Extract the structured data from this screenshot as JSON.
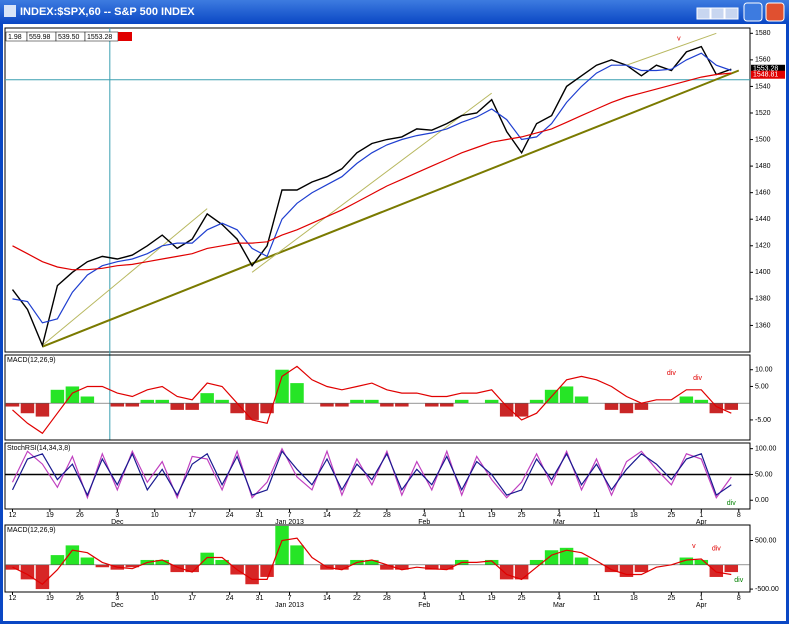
{
  "window_title": "INDEX:$SPX,60 -- S&P 500 INDEX",
  "chart_data": [
    {
      "type": "line",
      "info": [
        "1.98",
        "559.98",
        "539.50",
        "1553.28"
      ],
      "x": [
        0,
        2,
        4,
        6,
        8,
        10,
        12,
        14,
        16,
        18,
        20,
        22,
        24,
        26,
        28,
        30,
        32,
        34,
        36,
        38,
        40,
        42,
        44,
        46,
        48,
        50,
        52,
        54,
        56,
        58,
        60,
        62,
        64,
        66,
        68,
        70,
        72,
        74,
        76,
        78,
        80,
        82,
        84,
        86,
        88,
        90,
        92,
        94,
        96
      ],
      "xlim": [
        -1,
        98.5
      ],
      "ylim": [
        1340,
        1584
      ],
      "yticks": [
        1360,
        1380,
        1400,
        1420,
        1440,
        1460,
        1480,
        1500,
        1520,
        1540,
        1560,
        1580
      ],
      "series": [
        {
          "color": "#000000",
          "values": [
            1387,
            1372,
            1345,
            1390,
            1400,
            1408,
            1412,
            1410,
            1413,
            1420,
            1428,
            1418,
            1425,
            1444,
            1436,
            1425,
            1405,
            1420,
            1462,
            1462,
            1468,
            1472,
            1478,
            1490,
            1497,
            1500,
            1502,
            1508,
            1507,
            1512,
            1518,
            1520,
            1530,
            1506,
            1490,
            1512,
            1518,
            1540,
            1548,
            1556,
            1560,
            1556,
            1548,
            1556,
            1552,
            1566,
            1570,
            1549,
            1553
          ]
        },
        {
          "color": "#1f3fd0",
          "values": [
            1380,
            1378,
            1362,
            1365,
            1385,
            1398,
            1405,
            1408,
            1410,
            1414,
            1420,
            1422,
            1422,
            1432,
            1437,
            1432,
            1418,
            1412,
            1440,
            1452,
            1460,
            1466,
            1472,
            1482,
            1490,
            1496,
            1500,
            1503,
            1505,
            1508,
            1513,
            1517,
            1523,
            1515,
            1500,
            1502,
            1512,
            1528,
            1540,
            1550,
            1556,
            1556,
            1552,
            1552,
            1553,
            1560,
            1565,
            1556,
            1552
          ]
        },
        {
          "color": "#e00000",
          "values": [
            1420,
            1414,
            1408,
            1404,
            1402,
            1402,
            1403,
            1405,
            1406,
            1408,
            1410,
            1412,
            1414,
            1418,
            1420,
            1422,
            1422,
            1423,
            1428,
            1432,
            1437,
            1442,
            1447,
            1453,
            1459,
            1465,
            1470,
            1475,
            1480,
            1485,
            1490,
            1494,
            1498,
            1500,
            1502,
            1505,
            1508,
            1513,
            1518,
            1523,
            1528,
            1532,
            1535,
            1538,
            1541,
            1544,
            1547,
            1549,
            1550
          ]
        }
      ],
      "trendlines": [
        {
          "color": "#7a7a00",
          "x": [
            4,
            97
          ],
          "values": [
            1344,
            1552
          ]
        },
        {
          "color": "#b8b860",
          "x": [
            4,
            26
          ],
          "values": [
            1345,
            1448
          ]
        },
        {
          "color": "#b8b860",
          "x": [
            32,
            64
          ],
          "values": [
            1400,
            1535
          ]
        },
        {
          "color": "#b8b860",
          "x": [
            82,
            94
          ],
          "values": [
            1556,
            1580
          ]
        }
      ],
      "crosshair": {
        "color": "#3a9fb0",
        "x": 13,
        "y": 1545
      },
      "last_values": [
        {
          "value": 1553.28,
          "color": "#000000"
        },
        {
          "value": 1548.81,
          "color": "#e00000"
        }
      ],
      "annotations": [
        {
          "text": "v",
          "x": 89,
          "y": 1576,
          "color": "#e00000"
        }
      ]
    },
    {
      "type": "macd",
      "label": "MACD(12,26,9)",
      "x": [
        0,
        2,
        4,
        6,
        8,
        10,
        12,
        14,
        16,
        18,
        20,
        22,
        24,
        26,
        28,
        30,
        32,
        34,
        36,
        38,
        40,
        42,
        44,
        46,
        48,
        50,
        52,
        54,
        56,
        58,
        60,
        62,
        64,
        66,
        68,
        70,
        72,
        74,
        76,
        78,
        80,
        82,
        84,
        86,
        88,
        90,
        92,
        94,
        96
      ],
      "xlim": [
        -1,
        98.5
      ],
      "ylim": [
        -11,
        14.4
      ],
      "yticks": [
        {
          "value": 10,
          "label": "10.00"
        },
        {
          "value": 5,
          "label": "5.00"
        },
        {
          "value": -5,
          "label": "-5.00"
        }
      ],
      "histogram": {
        "pos_color": "#00e000",
        "neg_color": "#c00000",
        "values": [
          -1,
          -3,
          -4,
          4,
          5,
          2,
          0,
          -1,
          -1,
          1,
          1,
          -2,
          -2,
          3,
          1,
          -3,
          -5,
          -3,
          10,
          6,
          0,
          -1,
          -1,
          1,
          1,
          -1,
          -1,
          0,
          -1,
          -1,
          1,
          0,
          1,
          -4,
          -4,
          1,
          4,
          5,
          2,
          0,
          -2,
          -3,
          -2,
          0,
          0,
          2,
          1,
          -3,
          -2
        ]
      },
      "series": [
        {
          "color": "#e00000",
          "values": [
            -2,
            -6,
            -9,
            -3,
            3,
            5,
            5,
            3,
            2,
            4,
            5,
            2,
            1,
            6,
            5,
            0,
            -5,
            -6,
            8,
            11,
            7,
            5,
            4,
            5,
            6,
            4,
            3,
            3,
            2,
            2,
            3,
            3,
            4,
            -1,
            -5,
            -3,
            2,
            7,
            8,
            7,
            5,
            2,
            0,
            1,
            1,
            4,
            4,
            -1,
            -3
          ]
        }
      ],
      "annotations": [
        {
          "text": "div",
          "x": 88,
          "y": 9,
          "color": "#e00000"
        },
        {
          "text": "div",
          "x": 91.5,
          "y": 7.5,
          "color": "#e00000"
        }
      ]
    },
    {
      "type": "line",
      "label": "StochRSI(14,34,3,8)",
      "x": [
        0,
        2,
        4,
        6,
        8,
        10,
        12,
        14,
        16,
        18,
        20,
        22,
        24,
        26,
        28,
        30,
        32,
        34,
        36,
        38,
        40,
        42,
        44,
        46,
        48,
        50,
        52,
        54,
        56,
        58,
        60,
        62,
        64,
        66,
        68,
        70,
        72,
        74,
        76,
        78,
        80,
        82,
        84,
        86,
        88,
        90,
        92,
        94,
        96
      ],
      "xlim": [
        -1,
        98.5
      ],
      "ylim": [
        -17,
        111
      ],
      "yticks": [
        {
          "value": 100,
          "label": "100.00"
        },
        {
          "value": 50,
          "label": "50.00"
        },
        {
          "value": 0,
          "label": "0.00"
        }
      ],
      "reference_line": 50,
      "series": [
        {
          "color": "#c040c0",
          "values": [
            35,
            95,
            70,
            25,
            85,
            5,
            90,
            20,
            95,
            35,
            75,
            5,
            85,
            80,
            20,
            95,
            5,
            35,
            100,
            45,
            20,
            95,
            10,
            80,
            30,
            95,
            10,
            75,
            20,
            95,
            10,
            85,
            40,
            5,
            35,
            90,
            30,
            95,
            20,
            80,
            10,
            75,
            95,
            60,
            30,
            90,
            80,
            5,
            45
          ]
        },
        {
          "color": "#1a1a90",
          "values": [
            20,
            80,
            90,
            40,
            70,
            10,
            80,
            30,
            90,
            20,
            60,
            10,
            70,
            90,
            30,
            85,
            10,
            20,
            95,
            60,
            30,
            80,
            20,
            70,
            40,
            90,
            20,
            60,
            30,
            85,
            20,
            75,
            50,
            10,
            20,
            80,
            40,
            90,
            30,
            70,
            20,
            60,
            90,
            70,
            40,
            80,
            90,
            10,
            30
          ]
        }
      ],
      "xticks": [
        {
          "value": 0,
          "label": "12"
        },
        {
          "value": 5,
          "label": "19"
        },
        {
          "value": 9,
          "label": "26"
        },
        {
          "value": 14,
          "label": "3"
        },
        {
          "value": 19,
          "label": "10"
        },
        {
          "value": 24,
          "label": "17"
        },
        {
          "value": 29,
          "label": "24"
        },
        {
          "value": 33,
          "label": "31"
        },
        {
          "value": 37,
          "label": "7"
        },
        {
          "value": 42,
          "label": "14"
        },
        {
          "value": 46,
          "label": "22"
        },
        {
          "value": 50,
          "label": "28"
        },
        {
          "value": 55,
          "label": "4"
        },
        {
          "value": 60,
          "label": "11"
        },
        {
          "value": 64,
          "label": "19"
        },
        {
          "value": 68,
          "label": "25"
        },
        {
          "value": 73,
          "label": "4"
        },
        {
          "value": 78,
          "label": "11"
        },
        {
          "value": 83,
          "label": "18"
        },
        {
          "value": 88,
          "label": "25"
        },
        {
          "value": 92,
          "label": "1"
        },
        {
          "value": 97,
          "label": "8"
        }
      ],
      "months": [
        {
          "value": 14,
          "label": "Dec"
        },
        {
          "value": 37,
          "label": "Jan 2013"
        },
        {
          "value": 55,
          "label": "Feb"
        },
        {
          "value": 73,
          "label": "Mar"
        },
        {
          "value": 92,
          "label": "Apr"
        }
      ],
      "annotations": [
        {
          "text": "div",
          "x": 96,
          "y": -6,
          "color": "#008000"
        }
      ]
    },
    {
      "type": "macd",
      "label": "MACD(12,26,9)",
      "x": [
        0,
        2,
        4,
        6,
        8,
        10,
        12,
        14,
        16,
        18,
        20,
        22,
        24,
        26,
        28,
        30,
        32,
        34,
        36,
        38,
        40,
        42,
        44,
        46,
        48,
        50,
        52,
        54,
        56,
        58,
        60,
        62,
        64,
        66,
        68,
        70,
        72,
        74,
        76,
        78,
        80,
        82,
        84,
        86,
        88,
        90,
        92,
        94,
        96
      ],
      "xlim": [
        -1,
        98.5
      ],
      "ylim": [
        -560,
        820
      ],
      "yticks": [
        {
          "value": 500,
          "label": "500.00"
        },
        {
          "value": -500,
          "label": "-500.00"
        }
      ],
      "histogram": {
        "pos_color": "#00e000",
        "neg_color": "#d00000",
        "values": [
          -100,
          -300,
          -500,
          200,
          400,
          150,
          -50,
          -100,
          -50,
          100,
          100,
          -150,
          -150,
          250,
          100,
          -200,
          -400,
          -250,
          800,
          400,
          0,
          -100,
          -100,
          100,
          100,
          -100,
          -100,
          0,
          -100,
          -100,
          100,
          0,
          100,
          -300,
          -300,
          100,
          300,
          350,
          150,
          0,
          -150,
          -250,
          -150,
          0,
          0,
          150,
          100,
          -250,
          -150
        ]
      },
      "series": [
        {
          "color": "#e00000",
          "values": [
            -50,
            -200,
            -400,
            -100,
            300,
            250,
            50,
            -50,
            -80,
            50,
            100,
            -50,
            -150,
            150,
            150,
            -100,
            -300,
            -300,
            500,
            550,
            150,
            -50,
            -100,
            50,
            100,
            0,
            -100,
            -50,
            -80,
            -100,
            50,
            50,
            80,
            -200,
            -300,
            -50,
            200,
            300,
            250,
            80,
            -100,
            -200,
            -200,
            -50,
            0,
            100,
            120,
            -150,
            -200
          ]
        }
      ],
      "xticks": [
        {
          "value": 0,
          "label": "12"
        },
        {
          "value": 5,
          "label": "19"
        },
        {
          "value": 9,
          "label": "26"
        },
        {
          "value": 14,
          "label": "3"
        },
        {
          "value": 19,
          "label": "10"
        },
        {
          "value": 24,
          "label": "17"
        },
        {
          "value": 29,
          "label": "24"
        },
        {
          "value": 33,
          "label": "31"
        },
        {
          "value": 37,
          "label": "7"
        },
        {
          "value": 42,
          "label": "14"
        },
        {
          "value": 46,
          "label": "22"
        },
        {
          "value": 50,
          "label": "28"
        },
        {
          "value": 55,
          "label": "4"
        },
        {
          "value": 60,
          "label": "11"
        },
        {
          "value": 64,
          "label": "19"
        },
        {
          "value": 68,
          "label": "25"
        },
        {
          "value": 73,
          "label": "4"
        },
        {
          "value": 78,
          "label": "11"
        },
        {
          "value": 83,
          "label": "18"
        },
        {
          "value": 88,
          "label": "25"
        },
        {
          "value": 92,
          "label": "1"
        },
        {
          "value": 97,
          "label": "8"
        }
      ],
      "months": [
        {
          "value": 14,
          "label": "Dec"
        },
        {
          "value": 37,
          "label": "Jan 2013"
        },
        {
          "value": 55,
          "label": "Feb"
        },
        {
          "value": 73,
          "label": "Mar"
        },
        {
          "value": 92,
          "label": "Apr"
        }
      ],
      "annotations": [
        {
          "text": "v",
          "x": 91,
          "y": 380,
          "color": "#e00000"
        },
        {
          "text": "div",
          "x": 94,
          "y": 330,
          "color": "#e00000"
        },
        {
          "text": "div",
          "x": 97,
          "y": -320,
          "color": "#008000"
        }
      ]
    }
  ]
}
